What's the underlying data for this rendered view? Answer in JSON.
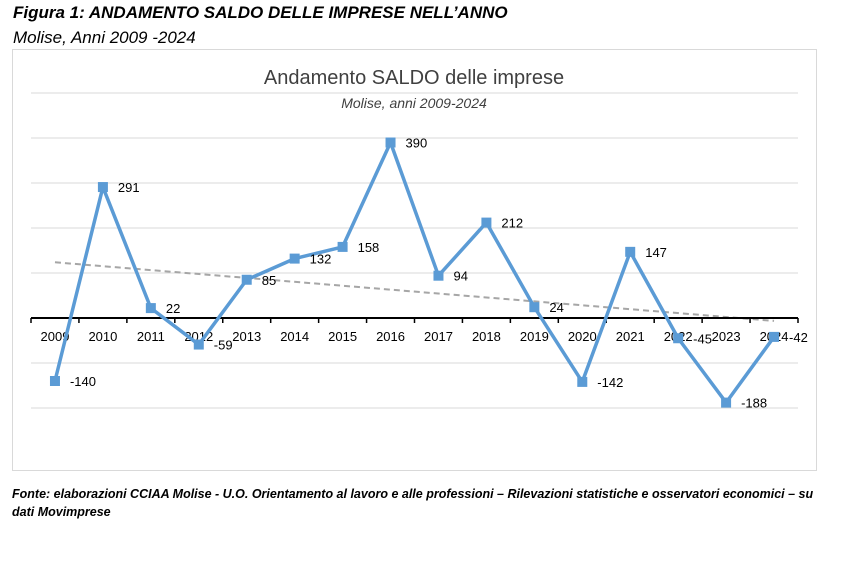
{
  "figure": {
    "title": "Figura 1: ANDAMENTO SALDO DELLE IMPRESE NELL’ANNO",
    "subtitle": "Molise, Anni 2009 -2024",
    "source": "Fonte: elaborazioni CCIAA Molise - U.O. Orientamento al lavoro e alle professioni – Rilevazioni statistiche e osservatori economici – su dati Movimprese"
  },
  "colors": {
    "series": "#5b9bd5",
    "trendline": "#a6a6a6",
    "gridline": "#d9d9d9",
    "axis": "#000000"
  },
  "chart_data": {
    "type": "line",
    "title": "Andamento SALDO delle imprese",
    "subtitle": "Molise, anni 2009-2024",
    "categories": [
      "2009",
      "2010",
      "2011",
      "2012",
      "2013",
      "2014",
      "2015",
      "2016",
      "2017",
      "2018",
      "2019",
      "2020",
      "2021",
      "2022",
      "2023",
      "2024"
    ],
    "series": [
      {
        "values": [
          -140,
          291,
          22,
          -59,
          85,
          132,
          158,
          390,
          94,
          212,
          24,
          -142,
          147,
          -45,
          -188,
          -42
        ],
        "marker": "square",
        "data_labels": true
      }
    ],
    "trendline": {
      "type": "linear",
      "style": "dashed"
    },
    "ylim": [
      -300,
      500
    ],
    "y_gridline_step": 100,
    "y_tick_labels_visible": false,
    "grid": true,
    "legend": false
  }
}
